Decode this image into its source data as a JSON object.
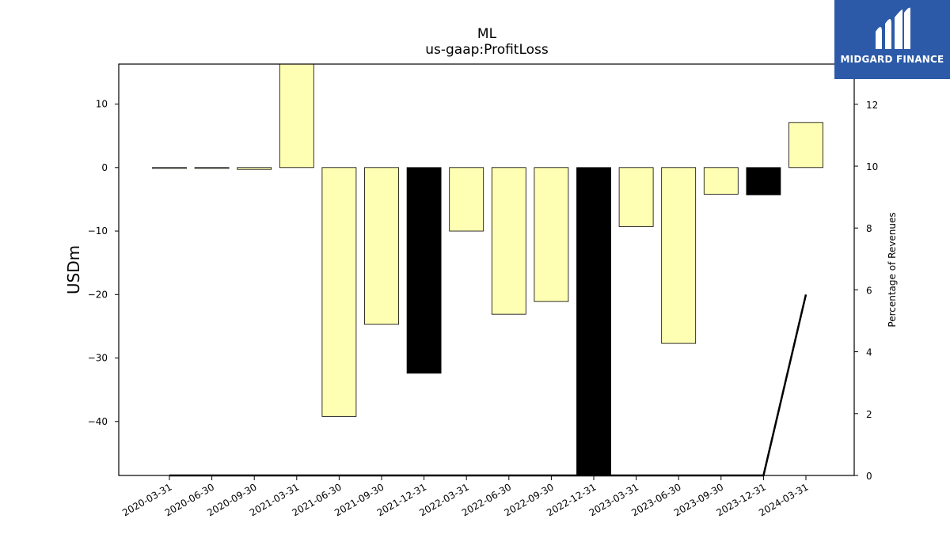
{
  "brand": {
    "name": "MIDGARD FINANCE",
    "logo_icon": "midgard-logo-icon",
    "background": "#2c5aa8"
  },
  "chart_data": {
    "type": "bar",
    "title": "ML",
    "subtitle": "us-gaap:ProfitLoss",
    "ylabel": "USDm",
    "y2label": "Percentage of Revenues",
    "ylim": [
      -48.5,
      16.3
    ],
    "y2lim": [
      0,
      13.3
    ],
    "yticks": [
      10,
      0,
      -10,
      -20,
      -30,
      -40
    ],
    "y2ticks": [
      0,
      2,
      4,
      6,
      8,
      10,
      12
    ],
    "categories": [
      "2020-03-31",
      "2020-06-30",
      "2020-09-30",
      "2021-03-31",
      "2021-06-30",
      "2021-09-30",
      "2021-12-31",
      "2022-03-31",
      "2022-06-30",
      "2022-09-30",
      "2022-12-31",
      "2023-03-31",
      "2023-06-30",
      "2023-09-30",
      "2023-12-31",
      "2024-03-31"
    ],
    "series": [
      {
        "values": [
          0.0,
          0.0,
          -0.3,
          16.5,
          -39.2,
          -24.7,
          -32.4,
          -10.0,
          -23.1,
          -21.1,
          -48.5,
          -9.3,
          -27.7,
          -4.2,
          -4.3,
          7.1
        ],
        "colors": [
          "#ffffb3",
          "#ffffb3",
          "#ffffb3",
          "#ffffb3",
          "#ffffb3",
          "#ffffb3",
          "#000000",
          "#ffffb3",
          "#ffffb3",
          "#ffffb3",
          "#000000",
          "#ffffb3",
          "#ffffb3",
          "#ffffb3",
          "#000000",
          "#ffffb3"
        ]
      },
      {
        "axis": "secondary",
        "type": "line",
        "x": [
          "2020-03-31",
          "2020-06-30",
          "2020-09-30",
          "2021-03-31",
          "2023-12-31",
          "2024-03-31"
        ],
        "values": [
          0.0,
          0.0,
          0.0,
          0.0,
          0.0,
          5.85
        ],
        "color": "#000000"
      }
    ]
  }
}
